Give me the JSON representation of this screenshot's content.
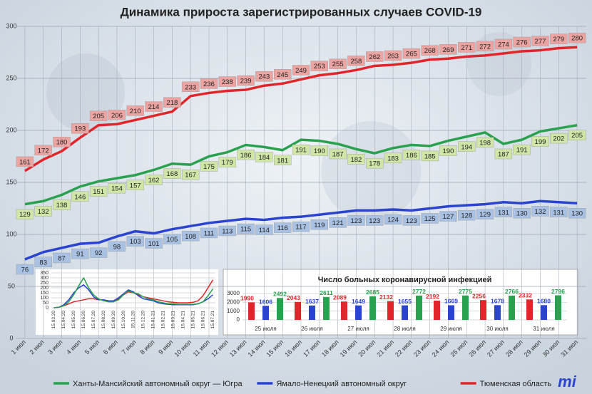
{
  "chart_data": [
    {
      "type": "line",
      "title": "Динамика прироста зарегистрированных случаев COVID-19",
      "categories": [
        "1 июл",
        "2 июл",
        "3 июл",
        "4 июл",
        "5 июл",
        "6 июл",
        "7 июл",
        "8 июл",
        "9 июл",
        "10 июл",
        "11 июл",
        "12 июл",
        "13 июл",
        "14 июл",
        "15 июл",
        "16 июл",
        "17 июл",
        "18 июл",
        "19 июл",
        "20 июл",
        "21 июл",
        "22 июл",
        "23 июл",
        "24 июл",
        "25 июл",
        "26 июл",
        "27 июл",
        "28 июл",
        "29 июл",
        "30 июл",
        "31 июл"
      ],
      "series": [
        {
          "name": "Ханты-Мансийский автономный округ — Югра",
          "color": "#2aa14f",
          "values": [
            129,
            132,
            138,
            146,
            151,
            154,
            157,
            162,
            168,
            167,
            175,
            179,
            186,
            184,
            181,
            191,
            190,
            187,
            182,
            178,
            183,
            186,
            185,
            190,
            194,
            198,
            187,
            191,
            199,
            202,
            205
          ]
        },
        {
          "name": "Ямало-Ненецкий автономный округ",
          "color": "#2b44cf",
          "values": [
            76,
            83,
            87,
            91,
            92,
            98,
            103,
            101,
            105,
            108,
            111,
            113,
            115,
            114,
            116,
            117,
            119,
            121,
            123,
            123,
            124,
            123,
            125,
            127,
            128,
            129,
            131,
            130,
            132,
            131,
            130
          ]
        },
        {
          "name": "Тюменская область",
          "color": "#e0262b",
          "values": [
            161,
            172,
            180,
            193,
            205,
            206,
            210,
            214,
            218,
            233,
            236,
            238,
            239,
            243,
            245,
            249,
            253,
            255,
            258,
            262,
            263,
            265,
            268,
            269,
            271,
            272,
            274,
            276,
            277,
            279,
            280
          ]
        }
      ],
      "ylim": [
        0,
        300
      ],
      "yticks": [
        0,
        50,
        100,
        150,
        200,
        250,
        300
      ],
      "grid": true,
      "data_labels": true,
      "legend": "bottom"
    },
    {
      "type": "line",
      "categories": [
        "15.03.20",
        null,
        "15.04.20",
        null,
        "15.05.20",
        null,
        "15.06.20",
        null,
        "15.07.20",
        null,
        "15.08.20",
        null,
        "15.09.20",
        null,
        "15.10.20",
        null,
        "15.11.20",
        null,
        "15.12.20",
        null,
        "15.01.21",
        null,
        "15.02.21",
        null,
        "15.03.21",
        null,
        "15.04.21",
        null,
        "15.05.21",
        null,
        "15.06.21",
        null,
        "15.07.21"
      ],
      "series": [
        {
          "color": "#e0262b",
          "values": [
            0,
            5,
            20,
            40,
            60,
            70,
            80,
            90,
            90,
            80,
            80,
            70,
            70,
            90,
            130,
            160,
            150,
            130,
            110,
            100,
            90,
            80,
            70,
            60,
            55,
            50,
            50,
            50,
            55,
            70,
            120,
            200,
            280
          ]
        },
        {
          "color": "#2b44cf",
          "values": [
            0,
            5,
            30,
            80,
            150,
            200,
            230,
            180,
            110,
            80,
            80,
            70,
            70,
            100,
            140,
            180,
            160,
            120,
            90,
            80,
            70,
            50,
            40,
            35,
            30,
            30,
            30,
            30,
            30,
            40,
            60,
            90,
            130
          ]
        },
        {
          "color": "#2aa14f",
          "values": [
            0,
            5,
            20,
            60,
            130,
            220,
            300,
            200,
            130,
            90,
            70,
            60,
            60,
            80,
            130,
            170,
            150,
            140,
            110,
            90,
            80,
            60,
            50,
            40,
            40,
            35,
            35,
            35,
            35,
            40,
            60,
            120,
            190
          ]
        }
      ],
      "ylim": [
        0,
        350
      ],
      "yticks": [
        0,
        50,
        100,
        150,
        200,
        250,
        300,
        350
      ],
      "grid": true
    },
    {
      "type": "bar",
      "title": "Число больных коронавирусной инфекцией",
      "categories": [
        "25 июля",
        "26 июля",
        "27 июля",
        "28 июля",
        "29 июля",
        "30 июля",
        "31 июля"
      ],
      "series": [
        {
          "color": "#e0262b",
          "values": [
            1990,
            2043,
            2089,
            2132,
            2192,
            2256,
            2332
          ]
        },
        {
          "color": "#2b44cf",
          "values": [
            1606,
            1637,
            1649,
            1655,
            1669,
            1678,
            1680
          ]
        },
        {
          "color": "#2aa14f",
          "values": [
            2492,
            2611,
            2685,
            2772,
            2775,
            2766,
            2796
          ]
        }
      ],
      "ylim": [
        0,
        3000
      ],
      "yticks": [
        0,
        1000,
        2000,
        3000
      ],
      "grid": true,
      "data_labels": true
    }
  ],
  "logo": "mi"
}
